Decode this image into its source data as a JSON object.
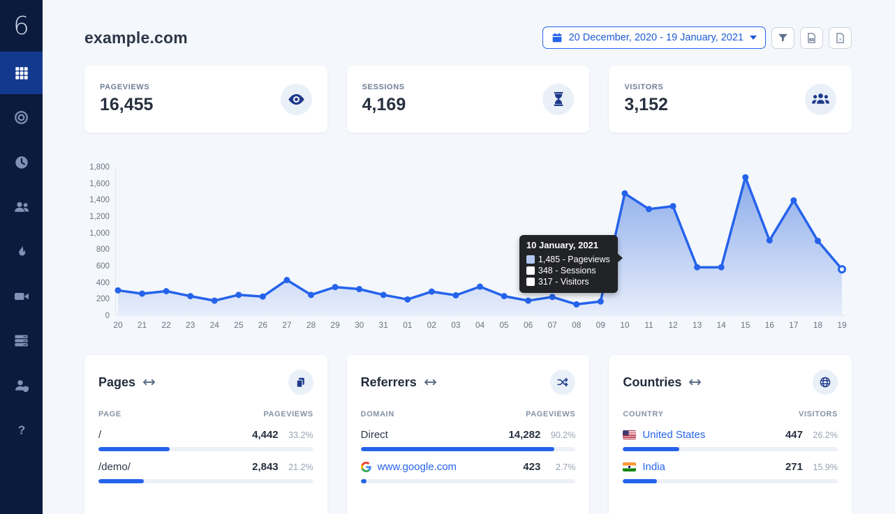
{
  "colors": {
    "accent": "#2563eb",
    "sidebar_bg": "#0b1b3d",
    "sidebar_active": "#13398f",
    "page_bg": "#f4f7fc",
    "icon_dark": "#1e3a8a",
    "tooltip_bg": "#222327",
    "line": "#2563eb",
    "area_top": "#86a8ea",
    "area_bottom": "#e7edfb"
  },
  "sidebar": {
    "logo": "6",
    "items": [
      {
        "label": "dashboard",
        "icon": "grid-icon",
        "active": true
      },
      {
        "label": "goals",
        "icon": "target-icon",
        "active": false
      },
      {
        "label": "realtime",
        "icon": "clock-icon",
        "active": false
      },
      {
        "label": "visitors",
        "icon": "users-icon",
        "active": false
      },
      {
        "label": "heatmaps",
        "icon": "flame-icon",
        "active": false
      },
      {
        "label": "recordings",
        "icon": "video-icon",
        "active": false
      },
      {
        "label": "servers",
        "icon": "server-icon",
        "active": false
      },
      {
        "label": "account",
        "icon": "user-shield-icon",
        "active": false
      },
      {
        "label": "help",
        "icon": "question-icon",
        "active": false
      }
    ]
  },
  "header": {
    "title": "example.com",
    "date_range": "20 December, 2020 - 19 January, 2021"
  },
  "stats": [
    {
      "label": "PAGEVIEWS",
      "value": "16,455",
      "icon": "eye-icon"
    },
    {
      "label": "SESSIONS",
      "value": "4,169",
      "icon": "hourglass-icon"
    },
    {
      "label": "VISITORS",
      "value": "3,152",
      "icon": "visitors-icon"
    }
  ],
  "chart_data": {
    "type": "area",
    "title": "",
    "xlabel": "",
    "ylabel": "",
    "ylim": [
      0,
      1800
    ],
    "yticks": [
      "1,800",
      "1,600",
      "1,400",
      "1,200",
      "1,000",
      "800",
      "600",
      "400",
      "200",
      "0"
    ],
    "ytick_values": [
      1800,
      1600,
      1400,
      1200,
      1000,
      800,
      600,
      400,
      200,
      0
    ],
    "grid": false,
    "x_labels": [
      "20",
      "21",
      "22",
      "23",
      "24",
      "25",
      "26",
      "27",
      "28",
      "29",
      "30",
      "31",
      "01",
      "02",
      "03",
      "04",
      "05",
      "06",
      "07",
      "08",
      "09",
      "10",
      "11",
      "12",
      "13",
      "14",
      "15",
      "16",
      "17",
      "18",
      "19"
    ],
    "series": [
      {
        "name": "Pageviews",
        "color": "#2563eb",
        "values": [
          310,
          270,
          300,
          240,
          185,
          255,
          235,
          435,
          255,
          350,
          325,
          255,
          200,
          295,
          250,
          355,
          240,
          185,
          230,
          140,
          175,
          1485,
          1295,
          1330,
          590,
          590,
          1680,
          915,
          1400,
          910,
          565
        ]
      }
    ],
    "last_point_open": true,
    "tooltip": {
      "anchor_index": 21,
      "title": "10 January, 2021",
      "entries": [
        {
          "swatch": "#b4c8f2",
          "text": "1,485 - Pageviews",
          "value": 1485,
          "metric": "Pageviews"
        },
        {
          "swatch": "#ffffff",
          "text": "348 - Sessions",
          "value": 348,
          "metric": "Sessions"
        },
        {
          "swatch": "#ffffff",
          "text": "317 - Visitors",
          "value": 317,
          "metric": "Visitors"
        }
      ]
    }
  },
  "panels": [
    {
      "title": "Pages",
      "action_icon": "copy-icon",
      "col_header": "PAGE",
      "val_header": "PAGEVIEWS",
      "rows": [
        {
          "label": "/",
          "value": "4,442",
          "pct_label": "33.2%",
          "pct": 33.2
        },
        {
          "label": "/demo/",
          "value": "2,843",
          "pct_label": "21.2%",
          "pct": 21.2
        }
      ]
    },
    {
      "title": "Referrers",
      "action_icon": "shuffle-icon",
      "col_header": "DOMAIN",
      "val_header": "PAGEVIEWS",
      "rows": [
        {
          "label": "Direct",
          "value": "14,282",
          "pct_label": "90.2%",
          "pct": 90.2
        },
        {
          "label": "www.google.com",
          "value": "423",
          "pct_label": "2.7%",
          "pct": 2.7
        }
      ]
    },
    {
      "title": "Countries",
      "action_icon": "globe-icon",
      "col_header": "COUNTRY",
      "val_header": "VISITORS",
      "rows": [
        {
          "label": "United States",
          "value": "447",
          "pct_label": "26.2%",
          "pct": 26.2
        },
        {
          "label": "India",
          "value": "271",
          "pct_label": "15.9%",
          "pct": 15.9
        }
      ]
    }
  ]
}
